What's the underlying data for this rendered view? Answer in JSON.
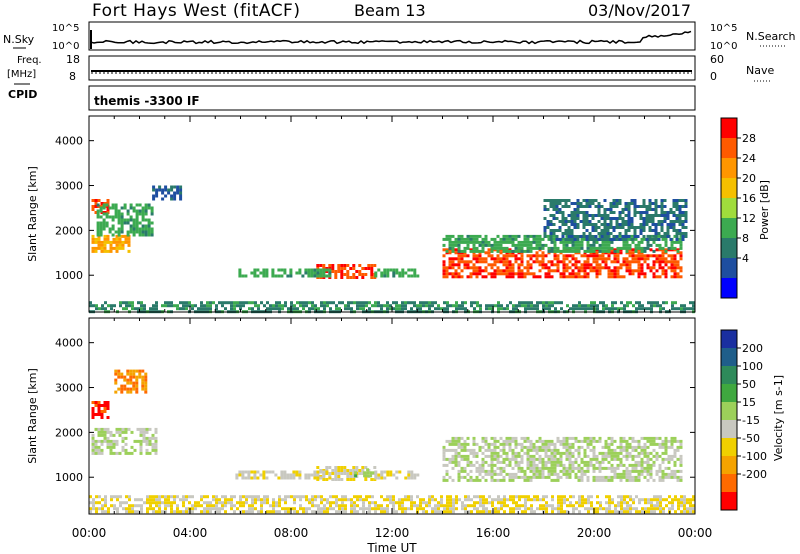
{
  "header": {
    "site": "Fort Hays West (fitACF)",
    "beam": "Beam 13",
    "date": "03/Nov/2017"
  },
  "top_panels": {
    "nsky_label": "N.Sky",
    "nsearch_label": "N.Search",
    "count_tick_high": "10^5",
    "count_tick_low": "10^0",
    "freq_label_1": "Freq.",
    "freq_label_2": "[MHz]",
    "freq_tick_high": "18",
    "freq_tick_low": "8",
    "nave_label": "Nave",
    "nave_tick_high": "60",
    "nave_tick_low": "0",
    "cpid_label": "CPID",
    "cpid_value": "themis -3300 IF"
  },
  "colorbars": {
    "power": {
      "label": "Power [dB]",
      "ticks": [
        "28",
        "24",
        "20",
        "16",
        "12",
        "8",
        "4"
      ],
      "colors": [
        "#ff0000",
        "#ff5a00",
        "#ff9600",
        "#f5c000",
        "#a0dc3c",
        "#3caa50",
        "#2a7a6a",
        "#1e4ea0",
        "#0000ff"
      ]
    },
    "velocity": {
      "label": "Velocity [m s-1]",
      "ticks": [
        "200",
        "100",
        "50",
        "15",
        "-15",
        "-50",
        "-100",
        "-200"
      ],
      "colors": [
        "#1a2fa0",
        "#1f5e8a",
        "#2e8a5a",
        "#3fa83f",
        "#9cd05a",
        "#c8c8c0",
        "#f0d000",
        "#f5a300",
        "#ff6a00",
        "#ff0000"
      ]
    }
  },
  "chart_data": [
    {
      "type": "heatmap",
      "quantity": "Power",
      "ylabel": "Slant Range [km]",
      "xlabel": "Time UT",
      "x_ticks": [
        "00:00",
        "04:00",
        "08:00",
        "12:00",
        "16:00",
        "20:00",
        "00:00"
      ],
      "y_ticks": [
        1000,
        2000,
        3000,
        4000
      ],
      "xlim_hours": [
        0,
        24
      ],
      "ylim_km": [
        180,
        4550
      ],
      "clim_db": [
        0,
        32
      ],
      "regions": [
        {
          "t": [
            0.1,
            1.6
          ],
          "r": [
            1500,
            1900
          ],
          "value": 22
        },
        {
          "t": [
            0.1,
            0.7
          ],
          "r": [
            2300,
            2700
          ],
          "value": 28
        },
        {
          "t": [
            0.3,
            2.5
          ],
          "r": [
            1900,
            2600
          ],
          "value": 12
        },
        {
          "t": [
            2.5,
            3.6
          ],
          "r": [
            2700,
            3000
          ],
          "value": 6
        },
        {
          "t": [
            9.0,
            11.3
          ],
          "r": [
            950,
            1250
          ],
          "value": 28
        },
        {
          "t": [
            5.8,
            9.6
          ],
          "r": [
            1000,
            1150
          ],
          "value": 12
        },
        {
          "t": [
            11.3,
            13.0
          ],
          "r": [
            1000,
            1150
          ],
          "value": 12
        },
        {
          "t": [
            14.0,
            23.5
          ],
          "r": [
            950,
            1600
          ],
          "value": 28
        },
        {
          "t": [
            14.0,
            23.5
          ],
          "r": [
            1500,
            1900
          ],
          "value": 12
        },
        {
          "t": [
            18.0,
            23.7
          ],
          "r": [
            1800,
            2700
          ],
          "value": 8
        },
        {
          "t": [
            0.0,
            23.9
          ],
          "r": [
            200,
            420
          ],
          "value": 10
        }
      ]
    },
    {
      "type": "heatmap",
      "quantity": "Velocity",
      "ylabel": "Slant Range [km]",
      "xlabel": "Time UT",
      "x_ticks": [
        "00:00",
        "04:00",
        "08:00",
        "12:00",
        "16:00",
        "20:00",
        "00:00"
      ],
      "y_ticks": [
        1000,
        2000,
        3000,
        4000
      ],
      "xlim_hours": [
        0,
        24
      ],
      "ylim_km": [
        180,
        4550
      ],
      "clim_ms": [
        -250,
        250
      ],
      "regions": [
        {
          "t": [
            0.1,
            0.7
          ],
          "r": [
            2300,
            2700
          ],
          "value": -220
        },
        {
          "t": [
            1.0,
            2.3
          ],
          "r": [
            2900,
            3400
          ],
          "value": -150
        },
        {
          "t": [
            0.1,
            2.6
          ],
          "r": [
            1500,
            2100
          ],
          "value": 0
        },
        {
          "t": [
            9.0,
            11.3
          ],
          "r": [
            950,
            1250
          ],
          "value": -45
        },
        {
          "t": [
            10.5,
            11.3
          ],
          "r": [
            1000,
            1200
          ],
          "value": 30
        },
        {
          "t": [
            5.8,
            9.6
          ],
          "r": [
            1000,
            1150
          ],
          "value": -40
        },
        {
          "t": [
            11.3,
            13.0
          ],
          "r": [
            1000,
            1150
          ],
          "value": -40
        },
        {
          "t": [
            14.0,
            23.5
          ],
          "r": [
            900,
            1900
          ],
          "value": 0
        },
        {
          "t": [
            0.0,
            23.9
          ],
          "r": [
            200,
            600
          ],
          "value": -50
        }
      ]
    }
  ]
}
